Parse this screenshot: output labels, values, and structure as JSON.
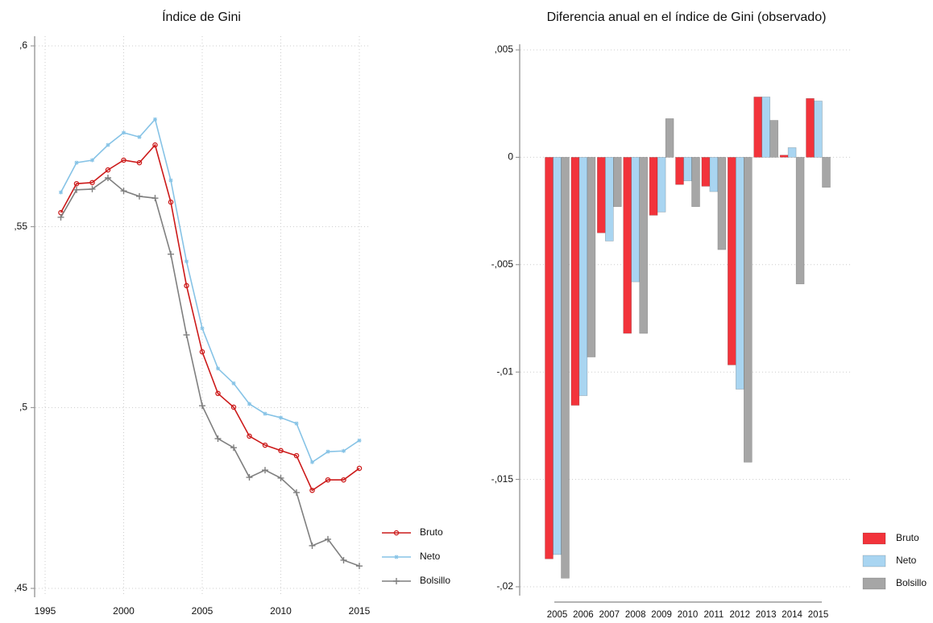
{
  "chart_data": [
    {
      "type": "line",
      "title": "Índice de Gini",
      "x": [
        1996,
        1997,
        1998,
        1999,
        2000,
        2001,
        2002,
        2003,
        2004,
        2005,
        2006,
        2007,
        2008,
        2009,
        2010,
        2011,
        2012,
        2013,
        2014,
        2015
      ],
      "series": [
        {
          "name": "Bruto",
          "color": "#cc1a1a",
          "values": [
            0.5539,
            0.5619,
            0.5622,
            0.5657,
            0.5684,
            0.5677,
            0.5726,
            0.5568,
            0.5337,
            0.5154,
            0.5039,
            0.5001,
            0.4921,
            0.4896,
            0.4881,
            0.4867,
            0.4771,
            0.48,
            0.48,
            0.4832
          ]
        },
        {
          "name": "Neto",
          "color": "#86c3e6",
          "values": [
            0.5595,
            0.5677,
            0.5684,
            0.5726,
            0.576,
            0.5748,
            0.5797,
            0.5628,
            0.5404,
            0.5219,
            0.5108,
            0.5067,
            0.501,
            0.4983,
            0.4972,
            0.4956,
            0.4849,
            0.4878,
            0.488,
            0.4909
          ]
        },
        {
          "name": "Bolsillo",
          "color": "#7f7f7f",
          "values": [
            0.5526,
            0.5602,
            0.5604,
            0.5635,
            0.5599,
            0.5584,
            0.5579,
            0.5424,
            0.5201,
            0.5005,
            0.4914,
            0.4889,
            0.4807,
            0.4827,
            0.4805,
            0.4765,
            0.4618,
            0.4636,
            0.4578,
            0.4562
          ]
        }
      ],
      "xlim": [
        1995,
        2015
      ],
      "xticks": [
        1995,
        2000,
        2005,
        2010,
        2015
      ],
      "ylim": [
        0.45,
        0.6
      ],
      "yticks": [
        {
          "value": 0.45,
          "label": ",45"
        },
        {
          "value": 0.5,
          "label": ",5"
        },
        {
          "value": 0.55,
          "label": ",55"
        },
        {
          "value": 0.6,
          "label": ",6"
        }
      ],
      "grid": true,
      "legend": "bottom-right"
    },
    {
      "type": "bar",
      "title": "Diferencia anual en el índice de Gini (observado)",
      "categories": [
        "2005",
        "2006",
        "2007",
        "2008",
        "2009",
        "2010",
        "2011",
        "2012",
        "2013",
        "2014",
        "2015"
      ],
      "series": [
        {
          "name": "Bruto",
          "color": "#f2333b",
          "values": [
            -0.0187,
            -0.01155,
            -0.00352,
            -0.0082,
            -0.0027,
            -0.00127,
            -0.00135,
            -0.00967,
            0.00281,
            0.0001,
            0.00274
          ]
        },
        {
          "name": "Neto",
          "color": "#a9d5f1",
          "values": [
            -0.0185,
            -0.0111,
            -0.0039,
            -0.0058,
            -0.00255,
            -0.0011,
            -0.0016,
            -0.0108,
            0.00281,
            0.00045,
            0.00262
          ]
        },
        {
          "name": "Bolsillo",
          "color": "#a6a6a6",
          "values": [
            -0.0196,
            -0.0093,
            -0.0023,
            -0.0082,
            0.0018,
            -0.0023,
            -0.0043,
            -0.0142,
            0.00172,
            -0.0059,
            -0.0014
          ]
        }
      ],
      "ylim": [
        -0.02,
        0.005
      ],
      "yticks": [
        {
          "value": -0.02,
          "label": "-,02"
        },
        {
          "value": -0.015,
          "label": "-,015"
        },
        {
          "value": -0.01,
          "label": "-,01"
        },
        {
          "value": -0.005,
          "label": "-,005"
        },
        0,
        {
          "value": 0.005,
          "label": ",005"
        }
      ],
      "grid": true,
      "legend": "bottom-right"
    }
  ]
}
